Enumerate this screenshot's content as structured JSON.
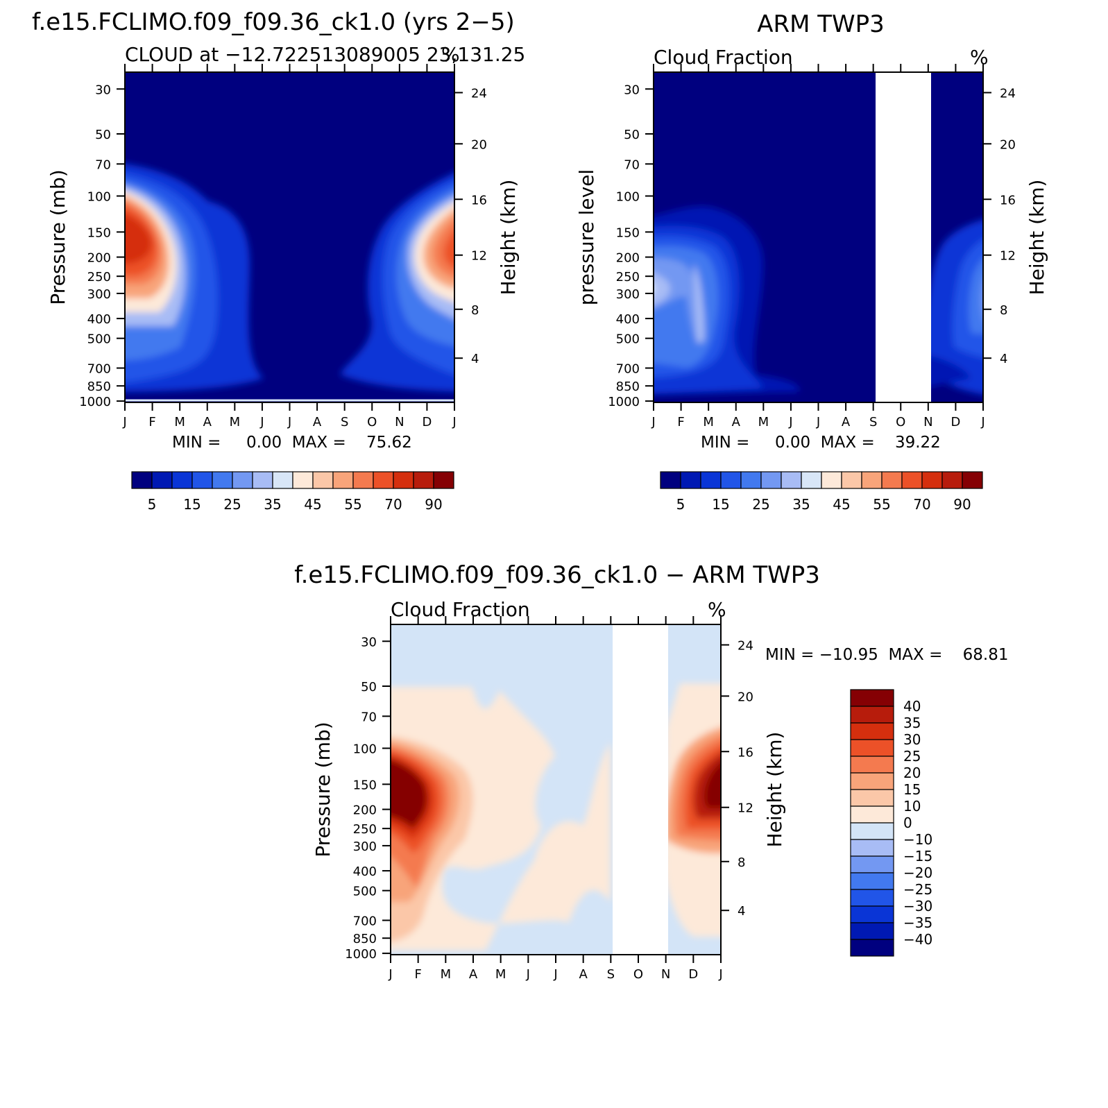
{
  "chart_data": [
    {
      "id": "model",
      "type": "heatmap",
      "title": "f.e15.FCLIMO.f09_f09.36_ck1.0 (yrs 2−5)",
      "subtitle": "CLOUD at −12.722513089005 23,131.25",
      "units": "%",
      "ylabel": "Pressure (mb)",
      "y2label": "Height (km)",
      "months": [
        "J",
        "F",
        "M",
        "A",
        "M",
        "J",
        "J",
        "A",
        "S",
        "O",
        "N",
        "D",
        "J"
      ],
      "pressure_ticks": [
        "30",
        "50",
        "70",
        "100",
        "150",
        "200",
        "250",
        "300",
        "400",
        "500",
        "700",
        "850",
        "1000"
      ],
      "height_ticks": [
        "24",
        "20",
        "16",
        "12",
        "8",
        "4"
      ],
      "stats": "MIN =     0.00  MAX =    75.62",
      "min": 0.0,
      "max": 75.62,
      "colorbar_labels": [
        "5",
        "15",
        "25",
        "35",
        "45",
        "55",
        "70",
        "90"
      ],
      "missing_months": []
    },
    {
      "id": "obs",
      "type": "heatmap",
      "title": "ARM TWP3",
      "subtitle": "Cloud Fraction",
      "units": "%",
      "ylabel": "pressure level",
      "y2label": "Height (km)",
      "months": [
        "J",
        "F",
        "M",
        "A",
        "M",
        "J",
        "J",
        "A",
        "S",
        "O",
        "N",
        "D",
        "J"
      ],
      "pressure_ticks": [
        "30",
        "50",
        "70",
        "100",
        "150",
        "200",
        "250",
        "300",
        "400",
        "500",
        "700",
        "850",
        "1000"
      ],
      "height_ticks": [
        "24",
        "20",
        "16",
        "12",
        "8",
        "4"
      ],
      "stats": "MIN =     0.00  MAX =    39.22",
      "min": 0.0,
      "max": 39.22,
      "colorbar_labels": [
        "5",
        "15",
        "25",
        "35",
        "45",
        "55",
        "70",
        "90"
      ],
      "missing_months": [
        "O"
      ]
    },
    {
      "id": "diff",
      "type": "heatmap",
      "title": "f.e15.FCLIMO.f09_f09.36_ck1.0 − ARM TWP3",
      "subtitle": "Cloud Fraction",
      "units": "%",
      "ylabel": "Pressure (mb)",
      "y2label": "Height (km)",
      "months": [
        "J",
        "F",
        "M",
        "A",
        "M",
        "J",
        "J",
        "A",
        "S",
        "O",
        "N",
        "D",
        "J"
      ],
      "pressure_ticks": [
        "30",
        "50",
        "70",
        "100",
        "150",
        "200",
        "250",
        "300",
        "400",
        "500",
        "700",
        "850",
        "1000"
      ],
      "height_ticks": [
        "24",
        "20",
        "16",
        "12",
        "8",
        "4"
      ],
      "stats": "MIN = −10.95  MAX =    68.81",
      "min": -10.95,
      "max": 68.81,
      "colorbar_labels": [
        "40",
        "35",
        "30",
        "25",
        "20",
        "15",
        "10",
        "0",
        "−10",
        "−15",
        "−20",
        "−25",
        "−30",
        "−35",
        "−40"
      ],
      "missing_months": [
        "O"
      ]
    }
  ],
  "colors": {
    "seq": [
      "#00007f",
      "#0019b3",
      "#0a35d6",
      "#2155e8",
      "#4279ef",
      "#7398f2",
      "#a8bcf5",
      "#d8e6f7",
      "#fde9d9",
      "#fbc7a8",
      "#f8a47a",
      "#f47a4f",
      "#ec5128",
      "#d52f0e",
      "#b71c0c",
      "#850004"
    ],
    "div": [
      "#850004",
      "#b71c0c",
      "#d52f0e",
      "#ec5128",
      "#f47a4f",
      "#f8a47a",
      "#fbc7a8",
      "#fde9d9",
      "#d3e4f7",
      "#a8bcf5",
      "#7398f2",
      "#4279ef",
      "#2155e8",
      "#0a35d6",
      "#0019b3",
      "#00007f"
    ]
  }
}
